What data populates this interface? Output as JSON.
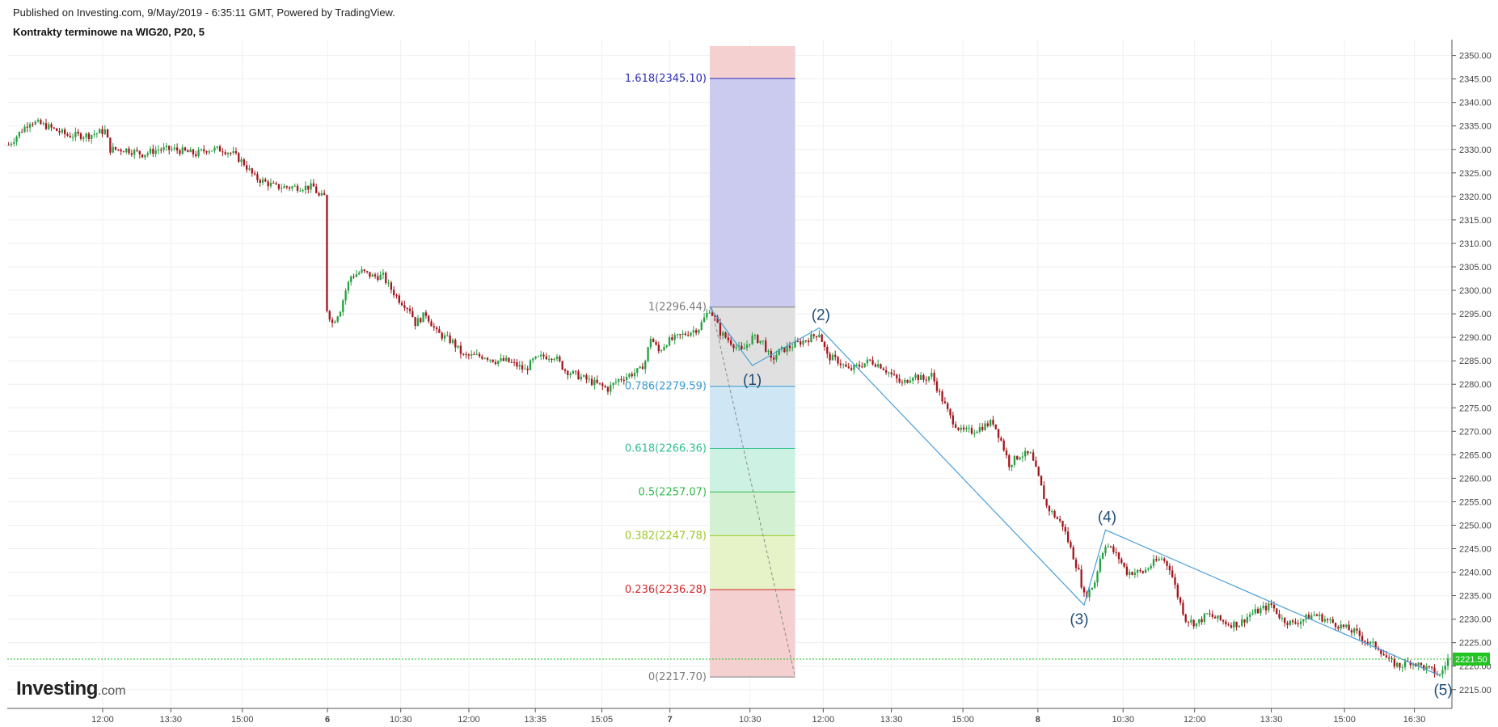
{
  "header": {
    "published": "Published on Investing.com, 9/May/2019 - 6:35:11 GMT, Powered by TradingView.",
    "title": "Kontrakty terminowe na WIG20, P20, 5"
  },
  "logo": {
    "name": "Investing",
    "suffix": ".com"
  },
  "chart_data": {
    "type": "candlestick",
    "ylim": [
      2211,
      2352
    ],
    "grid": true,
    "y_ticks": [
      "2350.00",
      "2345.00",
      "2340.00",
      "2335.00",
      "2330.00",
      "2325.00",
      "2320.00",
      "2315.00",
      "2310.00",
      "2305.00",
      "2300.00",
      "2295.00",
      "2290.00",
      "2285.00",
      "2280.00",
      "2275.00",
      "2270.00",
      "2265.00",
      "2260.00",
      "2255.00",
      "2250.00",
      "2245.00",
      "2240.00",
      "2235.00",
      "2230.00",
      "2225.00",
      "2220.00",
      "2215.00"
    ],
    "x_ticks": [
      "12:00",
      "13:30",
      "15:00",
      "6",
      "10:30",
      "12:00",
      "13:35",
      "15:05",
      "7",
      "10:30",
      "12:00",
      "13:30",
      "15:00",
      "8",
      "10:30",
      "12:00",
      "13:30",
      "15:00",
      "16:30"
    ],
    "bold_x_ticks": [
      "6",
      "7",
      "8"
    ],
    "last_price": {
      "label": "2221.50",
      "value": 2221.5,
      "color": "#21c421"
    },
    "up_color": "#26a042",
    "down_color": "#a2161d",
    "price_path": [
      [
        0,
        2331
      ],
      [
        8,
        2336
      ],
      [
        14,
        2335
      ],
      [
        22,
        2333
      ],
      [
        30,
        2333
      ],
      [
        36,
        2334
      ],
      [
        38,
        2330
      ],
      [
        44,
        2330
      ],
      [
        50,
        2329
      ],
      [
        56,
        2330
      ],
      [
        62,
        2330
      ],
      [
        70,
        2329
      ],
      [
        74,
        2330
      ],
      [
        80,
        2330
      ],
      [
        84,
        2329
      ],
      [
        88,
        2327
      ],
      [
        92,
        2324
      ],
      [
        100,
        2322
      ],
      [
        110,
        2322
      ],
      [
        114,
        2322
      ],
      [
        116,
        2320
      ],
      [
        118,
        2320
      ],
      [
        119,
        2296
      ],
      [
        121,
        2293
      ],
      [
        124,
        2296
      ],
      [
        126,
        2300
      ],
      [
        128,
        2303
      ],
      [
        132,
        2304
      ],
      [
        136,
        2303
      ],
      [
        140,
        2303
      ],
      [
        142,
        2301
      ],
      [
        146,
        2298
      ],
      [
        150,
        2296
      ],
      [
        152,
        2293
      ],
      [
        156,
        2295
      ],
      [
        160,
        2291
      ],
      [
        163,
        2290
      ],
      [
        166,
        2289
      ],
      [
        170,
        2286
      ],
      [
        173,
        2286
      ],
      [
        178,
        2286
      ],
      [
        182,
        2285
      ],
      [
        186,
        2285
      ],
      [
        190,
        2284
      ],
      [
        193,
        2283
      ],
      [
        196,
        2285
      ],
      [
        200,
        2286
      ],
      [
        204,
        2286
      ],
      [
        208,
        2283
      ],
      [
        212,
        2282
      ],
      [
        216,
        2281
      ],
      [
        220,
        2280
      ],
      [
        224,
        2279
      ],
      [
        228,
        2281
      ],
      [
        232,
        2282
      ],
      [
        236,
        2283
      ],
      [
        238,
        2285
      ],
      [
        240,
        2290
      ],
      [
        243,
        2287
      ],
      [
        246,
        2289
      ],
      [
        250,
        2290
      ],
      [
        254,
        2291
      ],
      [
        258,
        2292
      ],
      [
        261,
        2295
      ],
      [
        262,
        2296
      ],
      [
        264,
        2294
      ],
      [
        266,
        2291
      ],
      [
        270,
        2289
      ],
      [
        274,
        2287
      ],
      [
        278,
        2290
      ],
      [
        282,
        2289
      ],
      [
        285,
        2285
      ],
      [
        288,
        2287
      ],
      [
        292,
        2288
      ],
      [
        296,
        2289
      ],
      [
        300,
        2290
      ],
      [
        303,
        2291
      ],
      [
        306,
        2286
      ],
      [
        310,
        2285
      ],
      [
        314,
        2283
      ],
      [
        318,
        2284
      ],
      [
        322,
        2285
      ],
      [
        326,
        2284
      ],
      [
        330,
        2282
      ],
      [
        334,
        2280
      ],
      [
        338,
        2282
      ],
      [
        342,
        2281
      ],
      [
        345,
        2282
      ],
      [
        348,
        2278
      ],
      [
        352,
        2273
      ],
      [
        356,
        2270
      ],
      [
        360,
        2270
      ],
      [
        364,
        2271
      ],
      [
        368,
        2272
      ],
      [
        371,
        2268
      ],
      [
        374,
        2263
      ],
      [
        378,
        2265
      ],
      [
        382,
        2265
      ],
      [
        385,
        2260
      ],
      [
        388,
        2254
      ],
      [
        391,
        2252
      ],
      [
        394,
        2250
      ],
      [
        397,
        2245
      ],
      [
        400,
        2240
      ],
      [
        402,
        2235
      ],
      [
        404,
        2236
      ],
      [
        406,
        2238
      ],
      [
        408,
        2243
      ],
      [
        410,
        2246
      ],
      [
        412,
        2245
      ],
      [
        415,
        2243
      ],
      [
        418,
        2240
      ],
      [
        421,
        2240
      ],
      [
        424,
        2240
      ],
      [
        428,
        2242
      ],
      [
        431,
        2243
      ],
      [
        434,
        2241
      ],
      [
        437,
        2235
      ],
      [
        440,
        2230
      ],
      [
        444,
        2229
      ],
      [
        448,
        2231
      ],
      [
        452,
        2230
      ],
      [
        456,
        2229
      ],
      [
        460,
        2229
      ],
      [
        464,
        2231
      ],
      [
        468,
        2232
      ],
      [
        472,
        2233
      ],
      [
        476,
        2230
      ],
      [
        480,
        2229
      ],
      [
        484,
        2230
      ],
      [
        488,
        2231
      ],
      [
        492,
        2230
      ],
      [
        496,
        2229
      ],
      [
        500,
        2228
      ],
      [
        504,
        2227
      ],
      [
        508,
        2225
      ],
      [
        512,
        2224
      ],
      [
        516,
        2221
      ],
      [
        520,
        2220
      ],
      [
        524,
        2221
      ],
      [
        528,
        2220
      ],
      [
        532,
        2219
      ],
      [
        535,
        2218
      ],
      [
        538,
        2221.5
      ]
    ],
    "wave_points": [
      {
        "label": "",
        "t": 262,
        "v": 2296.44
      },
      {
        "label": "(1)",
        "t": 278,
        "v": 2284
      },
      {
        "label": "(2)",
        "t": 303,
        "v": 2292
      },
      {
        "label": "(3)",
        "t": 402,
        "v": 2233
      },
      {
        "label": "(4)",
        "t": 410,
        "v": 2249
      },
      {
        "label": "(5)",
        "t": 535,
        "v": 2218
      }
    ],
    "fibonacci": {
      "t_start": 262,
      "t_end": 294,
      "levels": [
        {
          "label": "1.618(2345.10)",
          "value": 2345.1,
          "color": "#2b2bb8",
          "fill": "#cbcbf0"
        },
        {
          "label": "1(2296.44)",
          "value": 2296.44,
          "color": "#7c7c7c",
          "fill": "#e0e0e0"
        },
        {
          "label": "0.786(2279.59)",
          "value": 2279.59,
          "color": "#3b9bd3",
          "fill": "#cfe6f5"
        },
        {
          "label": "0.618(2266.36)",
          "value": 2266.36,
          "color": "#2fbf8f",
          "fill": "#cdf1e3"
        },
        {
          "label": "0.5(2257.07)",
          "value": 2257.07,
          "color": "#32b94b",
          "fill": "#d3f0d3"
        },
        {
          "label": "0.382(2247.78)",
          "value": 2247.78,
          "color": "#9cc92a",
          "fill": "#e6f3c8"
        },
        {
          "label": "0.236(2236.28)",
          "value": 2236.28,
          "color": "#d3262a",
          "fill": "#f4d0d0"
        },
        {
          "label": "0(2217.70)",
          "value": 2217.7,
          "color": "#7c7c7c",
          "fill": null
        }
      ],
      "top_value": 2352
    }
  }
}
